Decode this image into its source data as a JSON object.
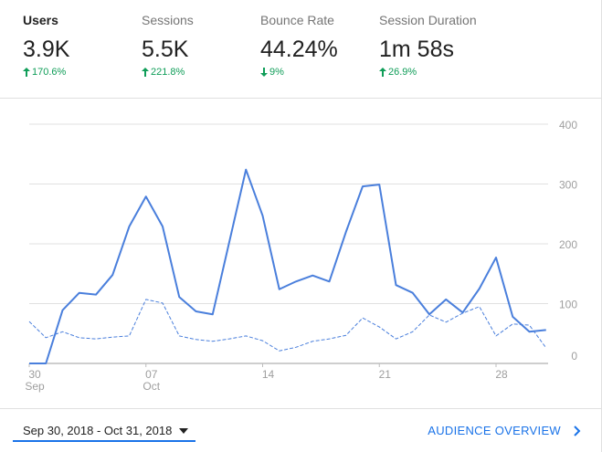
{
  "metrics": [
    {
      "label": "Users",
      "value": "3.9K",
      "change": "170.6%",
      "direction": "up"
    },
    {
      "label": "Sessions",
      "value": "5.5K",
      "change": "221.8%",
      "direction": "up"
    },
    {
      "label": "Bounce Rate",
      "value": "44.24%",
      "change": "9%",
      "direction": "down"
    },
    {
      "label": "Session Duration",
      "value": "1m 58s",
      "change": "26.9%",
      "direction": "up"
    }
  ],
  "chart_data": {
    "type": "line",
    "categories": [
      "30",
      null,
      null,
      null,
      null,
      null,
      null,
      "07",
      null,
      null,
      null,
      null,
      null,
      null,
      "14",
      null,
      null,
      null,
      null,
      null,
      null,
      "21",
      null,
      null,
      null,
      null,
      null,
      null,
      "28",
      null,
      null,
      null
    ],
    "sublabels": [
      "Sep",
      null,
      null,
      null,
      null,
      null,
      null,
      "Oct",
      null,
      null,
      null,
      null,
      null,
      null,
      null,
      null,
      null,
      null,
      null,
      null,
      null,
      null,
      null,
      null,
      null,
      null,
      null,
      null,
      null,
      null,
      null,
      null
    ],
    "series": [
      {
        "color": "#4a7fdc",
        "style": "solid",
        "values": [
          0,
          0,
          89,
          118,
          115,
          148,
          229,
          279,
          229,
          111,
          87,
          82,
          203,
          324,
          247,
          124,
          137,
          147,
          137,
          220,
          296,
          299,
          131,
          118,
          82,
          107,
          85,
          125,
          177,
          78,
          53,
          56
        ]
      },
      {
        "color": "#4a7fdc",
        "style": "dashed",
        "values": [
          70,
          43,
          53,
          43,
          41,
          44,
          46,
          107,
          101,
          46,
          40,
          37,
          41,
          46,
          38,
          21,
          27,
          37,
          41,
          47,
          76,
          61,
          41,
          53,
          81,
          69,
          84,
          95,
          46,
          66,
          64,
          26
        ]
      }
    ],
    "ylim": [
      0,
      400
    ],
    "yticks": [
      0,
      100,
      200,
      300,
      400
    ],
    "grid": true
  },
  "footer": {
    "date_range": "Sep 30, 2018 - Oct 31, 2018",
    "link": "AUDIENCE OVERVIEW"
  }
}
